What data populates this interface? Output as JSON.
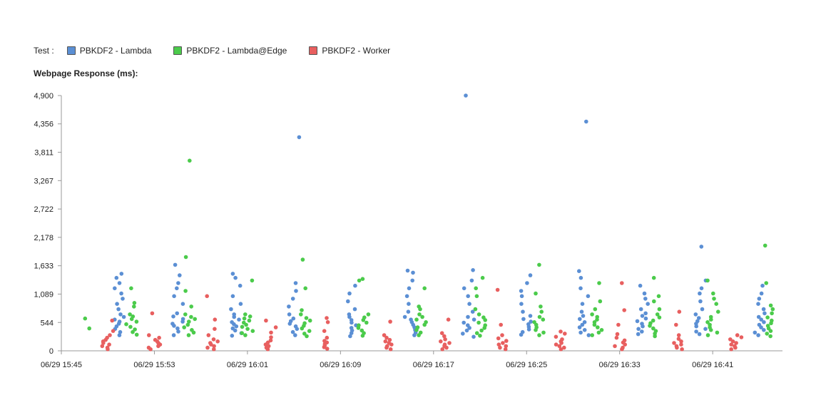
{
  "chart_data": {
    "type": "scatter",
    "legend_title": "Test :",
    "ylabel": "Webpage Response (ms):",
    "ylim": [
      0,
      4900
    ],
    "y_ticks": [
      "0",
      "544",
      "1,089",
      "1,633",
      "2,178",
      "2,722",
      "3,267",
      "3,811",
      "4,356",
      "4,900"
    ],
    "x_ticks": [
      "06/29 15:45",
      "06/29 15:53",
      "06/29 16:01",
      "06/29 16:09",
      "06/29 16:17",
      "06/29 16:25",
      "06/29 16:33",
      "06/29 16:41"
    ],
    "x_start": "06/29 15:45",
    "x_end": "06/29 16:47",
    "legend_position": "top",
    "grid": false,
    "series": [
      {
        "name": "PBKDF2 - Lambda",
        "color": "#5b8fd4",
        "batches": [
          {
            "time": "06/29 15:50",
            "values": [
              300,
              360,
              420,
              470,
              520,
              560,
              600,
              650,
              700,
              800,
              900,
              1000,
              1100,
              1200,
              1300,
              1400,
              1480
            ]
          },
          {
            "time": "06/29 15:55",
            "values": [
              300,
              370,
              430,
              480,
              520,
              560,
              610,
              660,
              720,
              900,
              1050,
              1200,
              1300,
              1450,
              1650
            ]
          },
          {
            "time": "06/29 16:00",
            "values": [
              290,
              340,
              390,
              430,
              470,
              510,
              550,
              600,
              650,
              700,
              800,
              900,
              1050,
              1250,
              1400,
              1480
            ]
          },
          {
            "time": "06/29 16:05",
            "values": [
              300,
              360,
              420,
              470,
              520,
              570,
              620,
              700,
              850,
              1000,
              1150,
              1300,
              4100
            ]
          },
          {
            "time": "06/29 16:10",
            "values": [
              280,
              340,
              390,
              440,
              490,
              540,
              590,
              650,
              700,
              800,
              950,
              1100,
              1250
            ]
          },
          {
            "time": "06/29 16:15",
            "values": [
              300,
              350,
              400,
              450,
              500,
              550,
              600,
              650,
              750,
              900,
              1050,
              1200,
              1350,
              1500,
              1540
            ]
          },
          {
            "time": "06/29 16:20",
            "values": [
              270,
              330,
              390,
              440,
              490,
              540,
              600,
              650,
              750,
              900,
              1050,
              1200,
              1350,
              1550,
              4900
            ]
          },
          {
            "time": "06/29 16:25",
            "values": [
              310,
              360,
              410,
              460,
              510,
              560,
              610,
              670,
              750,
              900,
              1050,
              1150,
              1300,
              1450
            ]
          },
          {
            "time": "06/29 16:30",
            "values": [
              300,
              350,
              400,
              450,
              500,
              550,
              610,
              670,
              750,
              900,
              1050,
              1200,
              1400,
              1530,
              4400
            ]
          },
          {
            "time": "06/29 16:35",
            "values": [
              320,
              370,
              420,
              470,
              520,
              570,
              620,
              670,
              720,
              800,
              900,
              1000,
              1100,
              1250
            ]
          },
          {
            "time": "06/29 16:40",
            "values": [
              320,
              370,
              420,
              470,
              520,
              570,
              630,
              700,
              800,
              950,
              1100,
              1200,
              1350,
              2000
            ]
          },
          {
            "time": "06/29 16:45",
            "values": [
              300,
              350,
              400,
              450,
              500,
              550,
              600,
              650,
              720,
              800,
              900,
              1000,
              1100,
              1250
            ]
          }
        ]
      },
      {
        "name": "PBKDF2 - Lambda@Edge",
        "color": "#4bcb4b",
        "batches": [
          {
            "time": "06/29 15:47",
            "values": [
              430,
              620
            ]
          },
          {
            "time": "06/29 15:51",
            "values": [
              310,
              360,
              410,
              460,
              510,
              560,
              610,
              660,
              700,
              850,
              920,
              1200
            ]
          },
          {
            "time": "06/29 15:56",
            "values": [
              300,
              350,
              400,
              450,
              500,
              560,
              610,
              650,
              700,
              850,
              1150,
              1800,
              3650
            ]
          },
          {
            "time": "06/29 16:01",
            "values": [
              300,
              340,
              380,
              420,
              460,
              500,
              540,
              580,
              620,
              660,
              700,
              1350
            ]
          },
          {
            "time": "06/29 16:06",
            "values": [
              280,
              330,
              380,
              430,
              480,
              530,
              580,
              630,
              700,
              780,
              1200,
              1750
            ]
          },
          {
            "time": "06/29 16:11",
            "values": [
              290,
              340,
              390,
              440,
              490,
              540,
              590,
              640,
              700,
              1350,
              1380
            ]
          },
          {
            "time": "06/29 16:16",
            "values": [
              300,
              350,
              400,
              450,
              500,
              550,
              600,
              650,
              700,
              800,
              850,
              1200
            ]
          },
          {
            "time": "06/29 16:21",
            "values": [
              290,
              340,
              390,
              440,
              490,
              540,
              590,
              640,
              700,
              800,
              1050,
              1200,
              1400
            ]
          },
          {
            "time": "06/29 16:26",
            "values": [
              300,
              350,
              400,
              450,
              500,
              550,
              600,
              650,
              750,
              850,
              1100,
              1650
            ]
          },
          {
            "time": "06/29 16:31",
            "values": [
              300,
              350,
              400,
              450,
              500,
              550,
              600,
              650,
              700,
              800,
              950,
              1300
            ]
          },
          {
            "time": "06/29 16:36",
            "values": [
              280,
              330,
              380,
              430,
              480,
              530,
              580,
              640,
              700,
              800,
              950,
              1050,
              1400
            ]
          },
          {
            "time": "06/29 16:41",
            "values": [
              300,
              350,
              400,
              450,
              500,
              550,
              600,
              650,
              750,
              900,
              1000,
              1100,
              1350
            ]
          },
          {
            "time": "06/29 16:46",
            "values": [
              280,
              330,
              380,
              430,
              480,
              530,
              580,
              640,
              720,
              800,
              870,
              1300,
              2020
            ]
          }
        ]
      },
      {
        "name": "PBKDF2 - Worker",
        "color": "#e85f5f",
        "batches": [
          {
            "time": "06/29 15:49",
            "values": [
              30,
              60,
              90,
              120,
              150,
              180,
              210,
              250,
              300,
              380,
              580
            ]
          },
          {
            "time": "06/29 15:53",
            "values": [
              30,
              60,
              90,
              120,
              150,
              180,
              210,
              250,
              300,
              720
            ]
          },
          {
            "time": "06/29 15:58",
            "values": [
              30,
              60,
              90,
              120,
              150,
              180,
              220,
              300,
              420,
              600,
              1050
            ]
          },
          {
            "time": "06/29 16:03",
            "values": [
              30,
              60,
              90,
              120,
              160,
              200,
              260,
              350,
              450,
              580
            ]
          },
          {
            "time": "06/29 16:08",
            "values": [
              40,
              70,
              100,
              130,
              160,
              190,
              250,
              380,
              550,
              630
            ]
          },
          {
            "time": "06/29 16:13",
            "values": [
              30,
              60,
              90,
              120,
              150,
              180,
              210,
              250,
              300,
              560
            ]
          },
          {
            "time": "06/29 16:18",
            "values": [
              30,
              60,
              90,
              120,
              150,
              180,
              220,
              280,
              340,
              600
            ]
          },
          {
            "time": "06/29 16:23",
            "values": [
              30,
              60,
              90,
              120,
              150,
              190,
              240,
              300,
              500,
              1170
            ]
          },
          {
            "time": "06/29 16:28",
            "values": [
              30,
              60,
              90,
              120,
              150,
              180,
              220,
              270,
              330,
              370
            ]
          },
          {
            "time": "06/29 16:33",
            "values": [
              30,
              60,
              90,
              120,
              160,
              200,
              250,
              320,
              500,
              780,
              1300
            ]
          },
          {
            "time": "06/29 16:38",
            "values": [
              30,
              60,
              90,
              120,
              150,
              180,
              230,
              300,
              500,
              750
            ]
          },
          {
            "time": "06/29 16:43",
            "values": [
              30,
              60,
              90,
              120,
              150,
              180,
              220,
              260,
              300
            ]
          }
        ]
      }
    ]
  }
}
